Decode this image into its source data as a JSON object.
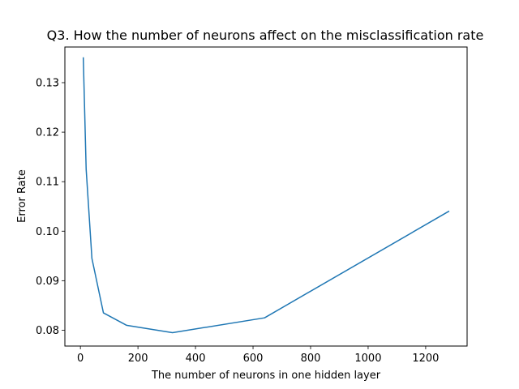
{
  "chart_data": {
    "type": "line",
    "title": "Q3. How the number of neurons affect on the misclassification rate",
    "xlabel": "The number of neurons in one hidden layer",
    "ylabel": "Error Rate",
    "xlim": [
      -54,
      1344
    ],
    "ylim": [
      0.0768,
      0.1372
    ],
    "xticks": [
      0,
      200,
      400,
      600,
      800,
      1000,
      1200
    ],
    "yticks": [
      0.08,
      0.09,
      0.1,
      0.11,
      0.12,
      0.13
    ],
    "xtick_labels": [
      "0",
      "200",
      "400",
      "600",
      "800",
      "1000",
      "1200"
    ],
    "ytick_labels": [
      "0.08",
      "0.09",
      "0.10",
      "0.11",
      "0.12",
      "0.13"
    ],
    "grid": false,
    "series": [
      {
        "color": "#1f77b4",
        "x": [
          10,
          20,
          40,
          80,
          160,
          320,
          640,
          1280
        ],
        "y": [
          0.135,
          0.1125,
          0.0945,
          0.0835,
          0.081,
          0.0795,
          0.0825,
          0.104
        ]
      }
    ]
  }
}
